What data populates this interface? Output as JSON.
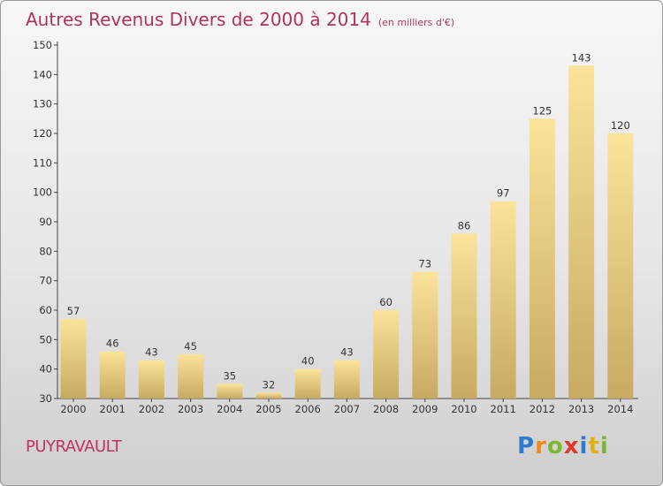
{
  "header": {
    "title": "Autres Revenus Divers de 2000 à 2014",
    "unit": "(en milliers d'€)"
  },
  "footer": {
    "location": "PUYRAVAULT",
    "brand_letters": [
      "P",
      "r",
      "o",
      "x",
      "i",
      "t",
      "i"
    ],
    "brand_colors": [
      "#2f7bd0",
      "#f08a1c",
      "#7ab833",
      "#e03a2a",
      "#2f7bd0",
      "#e0b012",
      "#7ab833"
    ]
  },
  "chart_data": {
    "type": "bar",
    "title": "Autres Revenus Divers de 2000 à 2014",
    "xlabel": "",
    "ylabel": "",
    "categories": [
      "2000",
      "2001",
      "2002",
      "2003",
      "2004",
      "2005",
      "2006",
      "2007",
      "2008",
      "2009",
      "2010",
      "2011",
      "2012",
      "2013",
      "2014"
    ],
    "values": [
      57,
      46,
      43,
      45,
      35,
      32,
      40,
      43,
      60,
      73,
      86,
      97,
      125,
      143,
      120
    ],
    "ylim": [
      30,
      150
    ],
    "yticks": [
      30,
      40,
      50,
      60,
      70,
      80,
      90,
      100,
      110,
      120,
      130,
      140,
      150
    ],
    "grid": false,
    "legend": "none",
    "colors": {
      "bar_light": "#fbe39a",
      "bar_dark": "#c8aa62",
      "axis": "#444444",
      "label": "#333333"
    }
  }
}
